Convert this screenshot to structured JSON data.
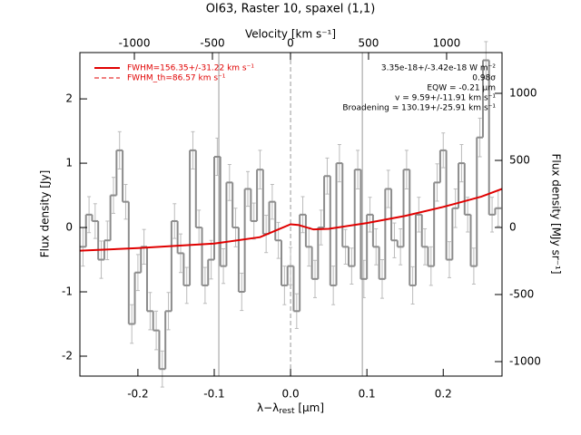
{
  "chart_data": {
    "type": "step",
    "title": "OI63, Raster 10, spaxel (1,1)",
    "xlabel": [
      "λ−λ",
      "rest",
      " [μm]"
    ],
    "x2label": "Velocity [km s⁻¹]",
    "ylabel": "Flux density [Jy]",
    "y2label": "Flux density [MJy sr⁻¹]",
    "xlim": [
      -0.276,
      0.277
    ],
    "xticks": [
      -0.2,
      -0.1,
      {
        "value": 0,
        "label": "0.0"
      },
      0.1,
      0.2
    ],
    "x2lim": [
      -1349,
      1355
    ],
    "x2ticks": [
      -1000,
      -500,
      0,
      500,
      1000
    ],
    "ylim": [
      -2.31,
      2.72
    ],
    "yticks": [
      -2,
      -1,
      0,
      1,
      2
    ],
    "y2lim": [
      -1108,
      1304
    ],
    "y2ticks": [
      -1000,
      -500,
      0,
      500,
      1000
    ],
    "series": [
      {
        "color": "#8c8c8c",
        "x": [
          -0.272,
          -0.264,
          -0.256,
          -0.248,
          -0.24,
          -0.232,
          -0.224,
          -0.216,
          -0.208,
          -0.2,
          -0.192,
          -0.184,
          -0.176,
          -0.168,
          -0.16,
          -0.152,
          -0.144,
          -0.136,
          -0.128,
          -0.12,
          -0.112,
          -0.104,
          -0.096,
          -0.088,
          -0.08,
          -0.072,
          -0.064,
          -0.056,
          -0.048,
          -0.04,
          -0.032,
          -0.024,
          -0.016,
          -0.008,
          0,
          0.008,
          0.016,
          0.024,
          0.032,
          0.04,
          0.048,
          0.056,
          0.064,
          0.072,
          0.08,
          0.088,
          0.096,
          0.104,
          0.112,
          0.12,
          0.128,
          0.136,
          0.144,
          0.152,
          0.16,
          0.168,
          0.176,
          0.184,
          0.192,
          0.2,
          0.208,
          0.216,
          0.224,
          0.232,
          0.24,
          0.248,
          0.256,
          0.264,
          0.272
        ],
        "values": [
          -0.3,
          0.2,
          0.1,
          -0.5,
          -0.2,
          0.5,
          1.2,
          0.4,
          -1.5,
          -0.7,
          -0.3,
          -1.3,
          -1.6,
          -2.2,
          -1.3,
          0.1,
          -0.4,
          -0.9,
          1.2,
          0.0,
          -0.9,
          -0.5,
          1.1,
          -0.6,
          0.7,
          0.0,
          -1.0,
          0.6,
          0.1,
          0.9,
          -0.1,
          0.4,
          -0.2,
          -0.9,
          -0.6,
          -1.3,
          0.2,
          -0.3,
          -0.8,
          0.0,
          0.8,
          -0.9,
          1.0,
          -0.3,
          -0.6,
          0.9,
          -0.8,
          0.2,
          -0.3,
          -0.8,
          0.6,
          -0.2,
          -0.3,
          0.9,
          -0.9,
          0.2,
          -0.3,
          -0.6,
          0.7,
          1.2,
          -0.5,
          0.3,
          1.0,
          0.2,
          -0.6,
          1.4,
          2.6,
          0.2,
          0.3
        ],
        "errors": [
          0.3,
          0.28,
          0.27,
          0.29,
          0.3,
          0.28,
          0.29,
          0.27,
          0.3,
          0.28,
          0.27,
          0.29,
          0.3,
          0.28,
          0.29,
          0.27,
          0.3,
          0.28,
          0.29,
          0.27,
          0.28,
          0.3,
          0.29,
          0.27,
          0.28,
          0.3,
          0.29,
          0.27,
          0.28,
          0.3,
          0.29,
          0.27,
          0.28,
          0.3,
          0.29,
          0.27,
          0.28,
          0.3,
          0.29,
          0.27,
          0.28,
          0.3,
          0.29,
          0.27,
          0.28,
          0.3,
          0.29,
          0.27,
          0.28,
          0.3,
          0.29,
          0.27,
          0.28,
          0.3,
          0.29,
          0.27,
          0.28,
          0.3,
          0.29,
          0.27,
          0.28,
          0.3,
          0.29,
          0.27,
          0.28,
          0.3,
          0.29,
          0.27,
          0.28
        ]
      },
      {
        "name": "FWHM=156.35+/-31.22 km s⁻¹",
        "color": "#e00000",
        "x": [
          -0.276,
          -0.2,
          -0.1,
          -0.04,
          -0.02,
          0,
          0.01,
          0.03,
          0.05,
          0.1,
          0.15,
          0.2,
          0.25,
          0.277
        ],
        "values": [
          -0.36,
          -0.32,
          -0.25,
          -0.15,
          -0.05,
          0.05,
          0.04,
          -0.03,
          -0.02,
          0.07,
          0.18,
          0.32,
          0.48,
          0.6
        ]
      }
    ],
    "legend_extra": "FWHM_th=86.57 km s⁻¹",
    "annotations": [
      "3.35e-18+/-3.42e-18 W m⁻²",
      "0.98σ",
      "EQW = -0.21 μm",
      "v = 9.59+/-11.91 km s⁻¹",
      "Broadening = 130.19+/-25.91 km s⁻¹"
    ],
    "vlines": [
      {
        "value": -0.094,
        "style": "solid"
      },
      {
        "value": 0,
        "style": "dashed"
      },
      {
        "value": 0.094,
        "style": "solid"
      }
    ]
  }
}
